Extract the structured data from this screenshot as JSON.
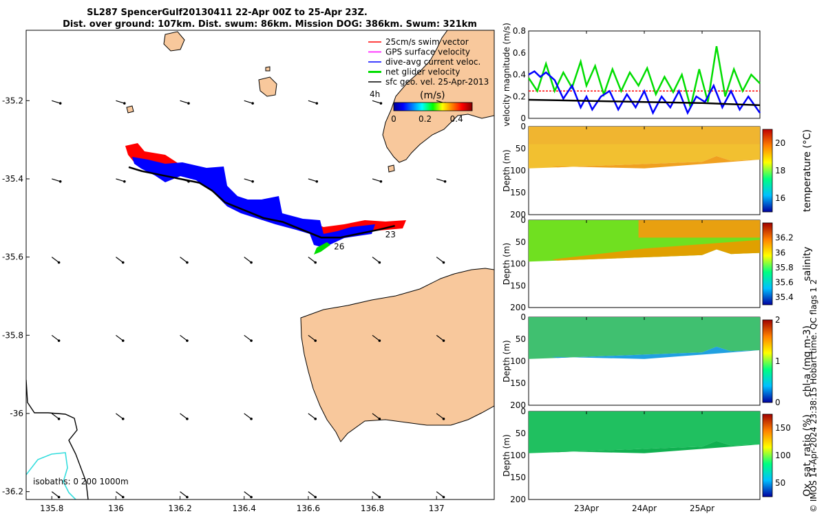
{
  "title": {
    "line1": "SL287 SpencerGulf20130411 22-Apr 00Z to 25-Apr 23Z.",
    "line2": "Dist. over ground: 107km. Dist. swum: 86km. Mission DOG: 386km. Swum: 321km"
  },
  "footer": "© IMOS 14-Apr-2024 23:38:15 Hobart time. QC flags 1  2",
  "colors": {
    "land": "#f8c89c",
    "swim": "#ff0000",
    "gps": "#ff00ff",
    "current": "#0000ff",
    "net": "#00dd00",
    "sfc": "#000000",
    "isobath200": "#33dddd"
  },
  "chart_data": [
    {
      "type": "map",
      "xlim": [
        135.72,
        137.18
      ],
      "ylim": [
        -36.22,
        -35.02
      ],
      "x_ticks": [
        "135.8",
        "136",
        "136.2",
        "136.4",
        "136.6",
        "136.8",
        "137"
      ],
      "x_tick_values": [
        135.8,
        136.0,
        136.2,
        136.4,
        136.6,
        136.8,
        137.0
      ],
      "y_ticks": [
        "-35.2",
        "-35.4",
        "-35.6",
        "-35.8",
        "-36",
        "-36.2"
      ],
      "y_tick_values": [
        -35.2,
        -35.4,
        -35.6,
        -35.8,
        -36.0,
        -36.2
      ],
      "legend": [
        {
          "label": "25cm/s swim vector",
          "color": "#ff0000"
        },
        {
          "label": "GPS surface velocity",
          "color": "#ff00ff"
        },
        {
          "label": "dive-avg current veloc.",
          "color": "#0000ff"
        },
        {
          "label": "net glider velocity",
          "color": "#00dd00"
        },
        {
          "label": "sfc geo. vel. 25-Apr-2013",
          "color": "#000000"
        }
      ],
      "legend_extra": "4h",
      "colorbar": {
        "label": "(m/s)",
        "ticks": [
          "0",
          "0.2",
          "0.4"
        ],
        "tick_values": [
          0,
          0.2,
          0.4
        ],
        "range": [
          0,
          0.5
        ]
      },
      "track": [
        [
          136.04,
          -35.37
        ],
        [
          136.08,
          -35.38
        ],
        [
          136.14,
          -35.39
        ],
        [
          136.2,
          -35.4
        ],
        [
          136.26,
          -35.41
        ],
        [
          136.3,
          -35.43
        ],
        [
          136.34,
          -35.46
        ],
        [
          136.4,
          -35.48
        ],
        [
          136.46,
          -35.5
        ],
        [
          136.52,
          -35.51
        ],
        [
          136.58,
          -35.53
        ],
        [
          136.64,
          -35.55
        ],
        [
          136.7,
          -35.55
        ],
        [
          136.76,
          -35.54
        ],
        [
          136.82,
          -35.53
        ],
        [
          136.87,
          -35.52
        ]
      ],
      "track_labels": [
        {
          "text": "26",
          "lon": 136.68,
          "lat": -35.58
        },
        {
          "text": "23",
          "lon": 136.84,
          "lat": -35.55
        }
      ],
      "isobath_label": "isobaths: 0   200   1000m"
    },
    {
      "type": "line",
      "ylabel": "velocity magnitude (m/s)",
      "ylim": [
        0,
        0.8
      ],
      "y_ticks": [
        "0",
        "0.2",
        "0.4",
        "0.6",
        "0.8"
      ],
      "y_tick_values": [
        0,
        0.2,
        0.4,
        0.6,
        0.8
      ],
      "x_range_days": [
        22,
        26
      ],
      "series": [
        {
          "color": "#ff0000",
          "values": [
            [
              22,
              0.25
            ],
            [
              26,
              0.25
            ]
          ]
        },
        {
          "color": "#00dd00",
          "values": [
            [
              22.0,
              0.37
            ],
            [
              22.15,
              0.25
            ],
            [
              22.3,
              0.5
            ],
            [
              22.45,
              0.25
            ],
            [
              22.6,
              0.42
            ],
            [
              22.75,
              0.28
            ],
            [
              22.9,
              0.52
            ],
            [
              23.0,
              0.3
            ],
            [
              23.15,
              0.48
            ],
            [
              23.3,
              0.22
            ],
            [
              23.45,
              0.45
            ],
            [
              23.6,
              0.25
            ],
            [
              23.75,
              0.42
            ],
            [
              23.9,
              0.3
            ],
            [
              24.05,
              0.46
            ],
            [
              24.2,
              0.22
            ],
            [
              24.35,
              0.38
            ],
            [
              24.5,
              0.24
            ],
            [
              24.65,
              0.4
            ],
            [
              24.8,
              0.1
            ],
            [
              24.95,
              0.45
            ],
            [
              25.1,
              0.15
            ],
            [
              25.25,
              0.66
            ],
            [
              25.4,
              0.2
            ],
            [
              25.55,
              0.45
            ],
            [
              25.7,
              0.25
            ],
            [
              25.85,
              0.4
            ],
            [
              26.0,
              0.32
            ]
          ]
        },
        {
          "color": "#0000ff",
          "values": [
            [
              22.0,
              0.4
            ],
            [
              22.1,
              0.43
            ],
            [
              22.2,
              0.38
            ],
            [
              22.3,
              0.42
            ],
            [
              22.45,
              0.35
            ],
            [
              22.6,
              0.18
            ],
            [
              22.75,
              0.3
            ],
            [
              22.9,
              0.1
            ],
            [
              23.0,
              0.2
            ],
            [
              23.1,
              0.08
            ],
            [
              23.25,
              0.2
            ],
            [
              23.4,
              0.25
            ],
            [
              23.55,
              0.08
            ],
            [
              23.7,
              0.22
            ],
            [
              23.85,
              0.1
            ],
            [
              24.0,
              0.25
            ],
            [
              24.15,
              0.05
            ],
            [
              24.3,
              0.2
            ],
            [
              24.45,
              0.1
            ],
            [
              24.6,
              0.25
            ],
            [
              24.75,
              0.05
            ],
            [
              24.9,
              0.2
            ],
            [
              25.05,
              0.15
            ],
            [
              25.2,
              0.3
            ],
            [
              25.35,
              0.1
            ],
            [
              25.5,
              0.25
            ],
            [
              25.65,
              0.08
            ],
            [
              25.8,
              0.2
            ],
            [
              26.0,
              0.05
            ]
          ]
        },
        {
          "color": "#000000",
          "values": [
            [
              22.0,
              0.17
            ],
            [
              22.5,
              0.165
            ],
            [
              23.0,
              0.16
            ],
            [
              23.5,
              0.155
            ],
            [
              24.0,
              0.15
            ],
            [
              24.5,
              0.145
            ],
            [
              25.0,
              0.14
            ],
            [
              25.5,
              0.13
            ],
            [
              26.0,
              0.12
            ]
          ]
        }
      ]
    },
    {
      "type": "heatmap",
      "ylabel": "Depth (m)",
      "cbar_label": "temperature (°C)",
      "ylim": [
        0,
        200
      ],
      "y_ticks": [
        "0",
        "50",
        "100",
        "150",
        "200"
      ],
      "y_tick_values": [
        0,
        50,
        100,
        150,
        200
      ],
      "cbar_range": [
        15,
        21
      ],
      "cbar_ticks": [
        "16",
        "18",
        "20"
      ],
      "cbar_tick_values": [
        16,
        18,
        20
      ]
    },
    {
      "type": "heatmap",
      "ylabel": "Depth (m)",
      "cbar_label": "salinity",
      "ylim": [
        0,
        200
      ],
      "y_ticks": [
        "0",
        "50",
        "100",
        "150",
        "200"
      ],
      "y_tick_values": [
        0,
        50,
        100,
        150,
        200
      ],
      "cbar_range": [
        35.3,
        36.4
      ],
      "cbar_ticks": [
        "35.4",
        "35.6",
        "35.8",
        "36",
        "36.2"
      ],
      "cbar_tick_values": [
        35.4,
        35.6,
        35.8,
        36.0,
        36.2
      ]
    },
    {
      "type": "heatmap",
      "ylabel": "Depth (m)",
      "cbar_label": "chl-a (mg m-3)",
      "ylim": [
        0,
        200
      ],
      "y_ticks": [
        "0",
        "50",
        "100",
        "150",
        "200"
      ],
      "y_tick_values": [
        0,
        50,
        100,
        150,
        200
      ],
      "cbar_range": [
        0,
        2
      ],
      "cbar_ticks": [
        "0",
        "1",
        "2"
      ],
      "cbar_tick_values": [
        0,
        1,
        2
      ]
    },
    {
      "type": "heatmap",
      "ylabel": "Depth (m)",
      "cbar_label": "Ox. sat. ratio (%)",
      "ylim": [
        0,
        200
      ],
      "y_ticks": [
        "0",
        "50",
        "100",
        "150",
        "200"
      ],
      "y_tick_values": [
        0,
        50,
        100,
        150,
        200
      ],
      "cbar_range": [
        25,
        175
      ],
      "cbar_ticks": [
        "50",
        "100",
        "150"
      ],
      "cbar_tick_values": [
        50,
        100,
        150
      ],
      "x_ticks": [
        "23Apr",
        "24Apr",
        "25Apr"
      ],
      "x_tick_values": [
        23,
        24,
        25
      ]
    }
  ]
}
